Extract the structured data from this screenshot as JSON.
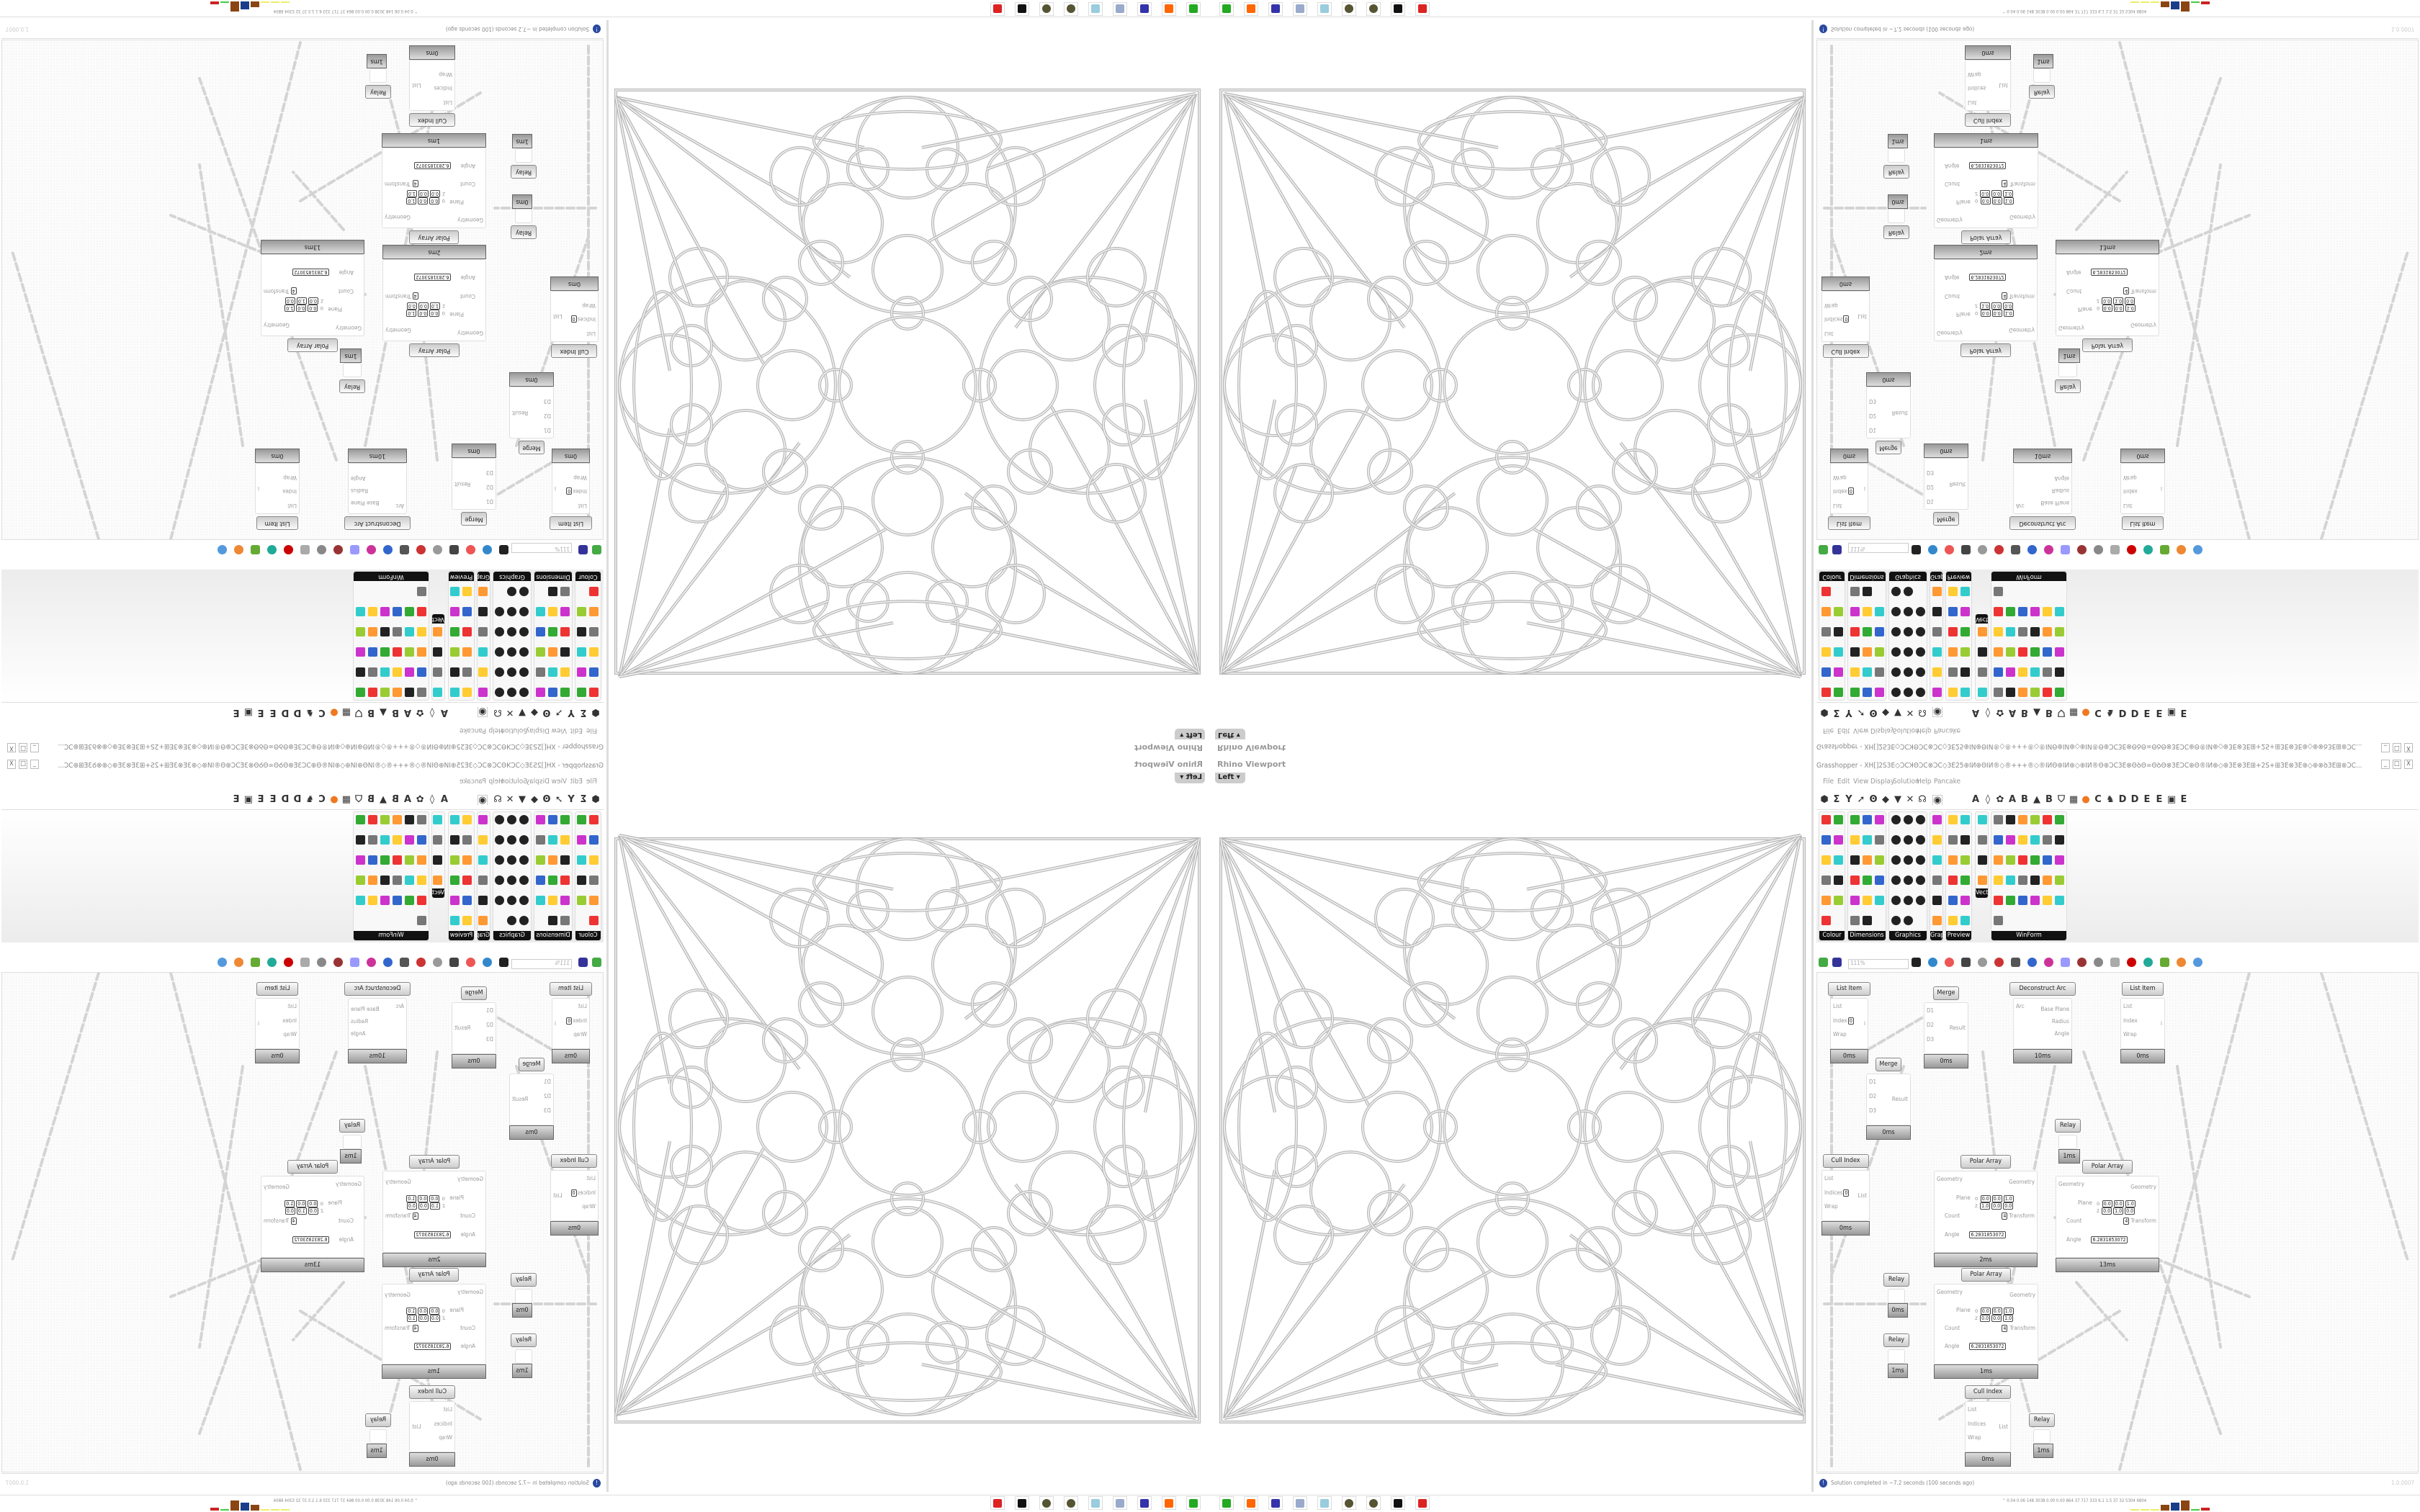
{
  "viewport": {
    "title": "Rhino Viewport",
    "view_label": "Left"
  },
  "grasshopper": {
    "window_title": "Grasshopper - XH[]2S3E◇ƆCꞰΘƆC⊗ƆC◇3E25⊕IИ⊕ΘIИ®◇®+++®◇®IИΘ⊕IИ⊕◇⊕IИ®Θ⊕ƆC3E⊗ΘꝺΘ∞ΘꝺΘ⊗3EƆC⊕Θ®IИ⊕◇⊕3E⊗3E⊞+2S+⊞3E⊗3E⊕◇⊕⊗ꝺ3E⊞⊕ƆC...",
    "window_buttons": [
      "_",
      "□",
      "X"
    ],
    "menu": [
      "File",
      "Edit",
      "View",
      "Display",
      "Solution",
      "Help",
      "Pancake"
    ],
    "tab_icons": [
      "⬢",
      "Σ",
      "Y",
      "➚",
      "Ꙩ",
      "◆",
      "▼",
      "✕",
      "☊",
      "◉",
      "A",
      "◊",
      "✿",
      "A",
      "B",
      "▲",
      "B",
      "⛉",
      "▦",
      "●",
      "C",
      "♞",
      "D",
      "D",
      "E",
      "E",
      "▣",
      "E"
    ],
    "panels": [
      {
        "label": "Colour",
        "icons": 11
      },
      {
        "label": "Dimensions",
        "icons": 17
      },
      {
        "label": "Graphics",
        "icons": 17
      },
      {
        "label": "Grap..",
        "icons": 6
      },
      {
        "label": "Preview",
        "icons": 12
      },
      {
        "label": "Vect.",
        "icons": 4
      },
      {
        "label": "WinForm",
        "icons": 31
      }
    ],
    "zoom": "111%",
    "components": [
      {
        "title": "List Item",
        "inputs": [
          "List",
          "Index",
          "Wrap"
        ],
        "outputs": [
          "i"
        ],
        "index": "0",
        "time": "0ms"
      },
      {
        "title": "Merge",
        "inputs": [
          "D1",
          "D2",
          "D3"
        ],
        "outputs": [
          "Result"
        ],
        "time": "0ms"
      },
      {
        "title": "Deconstruct Arc",
        "inputs": [
          "Arc"
        ],
        "outputs": [
          "Base Plane",
          "Radius",
          "Angle"
        ],
        "time": "10ms"
      },
      {
        "title": "List Item",
        "inputs": [
          "List",
          "Index",
          "Wrap"
        ],
        "outputs": [
          "i"
        ],
        "time": "0ms"
      },
      {
        "title": "Merge",
        "inputs": [
          "D1",
          "D2",
          "D3"
        ],
        "outputs": [
          "Result"
        ],
        "time": "0ms"
      },
      {
        "title": "Relay",
        "inputs": [],
        "outputs": [],
        "time": "1ms"
      },
      {
        "title": "Cull Index",
        "inputs": [
          "List",
          "Indices",
          "Wrap"
        ],
        "outputs": [
          "List"
        ],
        "index": "0",
        "time": "0ms"
      },
      {
        "title": "Polar Array",
        "inputs": [
          "Geometry",
          "Plane",
          "Count",
          "Angle"
        ],
        "outputs": [
          "Geometry",
          "Transform"
        ],
        "plane_o": [
          "0.0",
          "0.0",
          "1.0"
        ],
        "plane_z": [
          "1.0",
          "0.0",
          "0.0"
        ],
        "count": "4",
        "angle": "6.2831853072",
        "time": "2ms"
      },
      {
        "title": "Polar Array",
        "inputs": [
          "Geometry",
          "Plane",
          "Count",
          "Angle"
        ],
        "outputs": [
          "Geometry",
          "Transform"
        ],
        "plane_o": [
          "0.0",
          "0.0",
          "1.0"
        ],
        "plane_z": [
          "0.0",
          "1.0",
          "0.0"
        ],
        "count": "4",
        "angle": "6.2831853072",
        "time": "13ms"
      },
      {
        "title": "Relay",
        "inputs": [],
        "outputs": [],
        "time": "0ms"
      },
      {
        "title": "Relay",
        "inputs": [],
        "outputs": [],
        "time": "1ms"
      },
      {
        "title": "Polar Array",
        "inputs": [
          "Geometry",
          "Plane",
          "Count",
          "Angle"
        ],
        "outputs": [
          "Geometry",
          "Transform"
        ],
        "plane_o": [
          "0.0",
          "0.0",
          "1.0"
        ],
        "plane_z": [
          "0.0",
          "0.0",
          "1.0"
        ],
        "count": "4",
        "angle": "6.2831853072",
        "time": "1ms"
      },
      {
        "title": "Cull Index",
        "inputs": [
          "List",
          "Indices",
          "Wrap"
        ],
        "outputs": [
          "List"
        ],
        "time": "0ms"
      },
      {
        "title": "Relay",
        "inputs": [],
        "outputs": [],
        "time": "1ms"
      }
    ],
    "status": "Solution completed in ~7.2 seconds (100 seconds ago)",
    "version": "1.0.0007"
  },
  "taskbar": {
    "apps": [
      "monitor-app",
      "firefox",
      "floppy-64",
      "scanner",
      "notepad",
      "sphere-app",
      "sphere-app-2",
      "rhino",
      "red-gear-app"
    ],
    "stats": "0.04 0.06 148 3038 0.00 0.00 864 37 717 333 6.1 1.5 37 32 5304 6804"
  },
  "colors": {
    "accent_orange": "#f07820",
    "canvas_bg": "#fcfcfc",
    "footer_gray": "#999999"
  }
}
